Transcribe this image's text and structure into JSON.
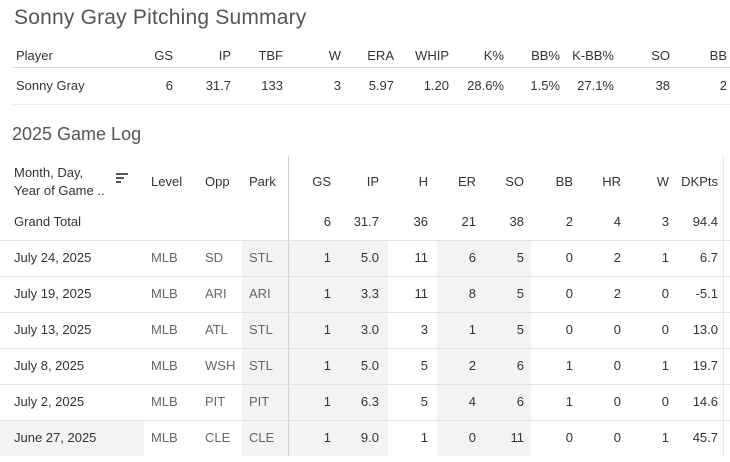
{
  "summary": {
    "title": "Sonny Gray Pitching Summary",
    "headers": [
      "Player",
      "GS",
      "IP",
      "TBF",
      "W",
      "ERA",
      "WHIP",
      "K%",
      "BB%",
      "K-BB%",
      "SO",
      "BB"
    ],
    "row": [
      "Sonny Gray",
      "6",
      "31.7",
      "133",
      "3",
      "5.97",
      "1.20",
      "28.6%",
      "1.5%",
      "27.1%",
      "38",
      "2"
    ]
  },
  "game_log": {
    "title": "2025 Game Log",
    "date_header_line1": "Month, Day,",
    "date_header_line2": "Year of Game ..",
    "sort_icon": "sort-descending-icon",
    "headers": [
      "Level",
      "Opp",
      "Park",
      "GS",
      "IP",
      "H",
      "ER",
      "SO",
      "BB",
      "HR",
      "W",
      "DKPts"
    ],
    "grand_total": {
      "label": "Grand Total",
      "values": [
        "6",
        "31.7",
        "36",
        "21",
        "38",
        "2",
        "4",
        "3",
        "94.4"
      ]
    },
    "rows": [
      {
        "date": "July 24, 2025",
        "level": "MLB",
        "opp": "SD",
        "park": "STL",
        "values": [
          "1",
          "5.0",
          "11",
          "6",
          "5",
          "0",
          "2",
          "1",
          "6.7"
        ]
      },
      {
        "date": "July 19, 2025",
        "level": "MLB",
        "opp": "ARI",
        "park": "ARI",
        "values": [
          "1",
          "3.3",
          "11",
          "8",
          "5",
          "0",
          "2",
          "0",
          "-5.1"
        ]
      },
      {
        "date": "July 13, 2025",
        "level": "MLB",
        "opp": "ATL",
        "park": "STL",
        "values": [
          "1",
          "3.0",
          "3",
          "1",
          "5",
          "0",
          "0",
          "0",
          "13.0"
        ]
      },
      {
        "date": "July 8, 2025",
        "level": "MLB",
        "opp": "WSH",
        "park": "STL",
        "values": [
          "1",
          "5.0",
          "5",
          "2",
          "6",
          "1",
          "0",
          "1",
          "19.7"
        ]
      },
      {
        "date": "July 2, 2025",
        "level": "MLB",
        "opp": "PIT",
        "park": "PIT",
        "values": [
          "1",
          "6.3",
          "5",
          "4",
          "6",
          "1",
          "0",
          "0",
          "14.6"
        ]
      },
      {
        "date": "June 27, 2025",
        "level": "MLB",
        "opp": "CLE",
        "park": "CLE",
        "values": [
          "1",
          "9.0",
          "1",
          "0",
          "11",
          "0",
          "0",
          "1",
          "45.7"
        ]
      }
    ]
  }
}
